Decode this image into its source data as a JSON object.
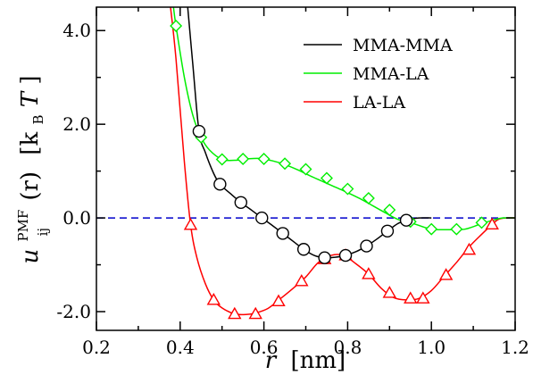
{
  "chart_data": {
    "type": "line",
    "xlabel": {
      "var": "r",
      "unit": "[nm]"
    },
    "ylabel": {
      "base": "u",
      "sup": "PMF",
      "sub": "ij",
      "arg": "(r)",
      "unit_open": "[k",
      "unit_sub": "B",
      "unit_T": "T",
      "unit_close": "]"
    },
    "xlim": [
      0.2,
      1.2
    ],
    "ylim": [
      -2.4,
      4.5
    ],
    "x_ticks": [
      0.2,
      0.4,
      0.6,
      0.8,
      1.0,
      1.2
    ],
    "x_tick_labels": [
      "0.2",
      "0.4",
      "0.6",
      "0.8",
      "1.0",
      "1.2"
    ],
    "y_ticks": [
      -2.0,
      0.0,
      2.0,
      4.0
    ],
    "y_tick_labels": [
      "-2.0",
      "0.0",
      "2.0",
      "4.0"
    ],
    "grid": false,
    "legend_position": "top-right",
    "reference_line": {
      "y": 0.0,
      "style": "dashed",
      "color": "#0000cc"
    },
    "series": [
      {
        "name": "MMA-MMA",
        "color": "#000000",
        "marker": "circle",
        "curve": [
          [
            0.418,
            4.5
          ],
          [
            0.43,
            3.3
          ],
          [
            0.445,
            1.85
          ],
          [
            0.46,
            1.4
          ],
          [
            0.48,
            0.95
          ],
          [
            0.495,
            0.72
          ],
          [
            0.52,
            0.52
          ],
          [
            0.545,
            0.33
          ],
          [
            0.57,
            0.17
          ],
          [
            0.595,
            0.0
          ],
          [
            0.62,
            -0.16
          ],
          [
            0.645,
            -0.33
          ],
          [
            0.67,
            -0.5
          ],
          [
            0.695,
            -0.67
          ],
          [
            0.72,
            -0.8
          ],
          [
            0.745,
            -0.85
          ],
          [
            0.77,
            -0.84
          ],
          [
            0.795,
            -0.8
          ],
          [
            0.82,
            -0.72
          ],
          [
            0.845,
            -0.6
          ],
          [
            0.87,
            -0.45
          ],
          [
            0.895,
            -0.28
          ],
          [
            0.92,
            -0.12
          ],
          [
            0.94,
            -0.05
          ],
          [
            0.955,
            -0.02
          ],
          [
            0.97,
            0.0
          ],
          [
            1.0,
            0.0
          ]
        ],
        "markers": [
          [
            0.445,
            1.85
          ],
          [
            0.495,
            0.72
          ],
          [
            0.545,
            0.33
          ],
          [
            0.595,
            0.0
          ],
          [
            0.645,
            -0.33
          ],
          [
            0.695,
            -0.67
          ],
          [
            0.745,
            -0.85
          ],
          [
            0.795,
            -0.8
          ],
          [
            0.845,
            -0.6
          ],
          [
            0.895,
            -0.28
          ],
          [
            0.94,
            -0.05
          ]
        ]
      },
      {
        "name": "MMA-LA",
        "color": "#00ee00",
        "marker": "diamond",
        "curve": [
          [
            0.384,
            4.5
          ],
          [
            0.39,
            4.1
          ],
          [
            0.41,
            3.0
          ],
          [
            0.43,
            2.2
          ],
          [
            0.45,
            1.72
          ],
          [
            0.47,
            1.45
          ],
          [
            0.5,
            1.25
          ],
          [
            0.53,
            1.23
          ],
          [
            0.56,
            1.26
          ],
          [
            0.59,
            1.27
          ],
          [
            0.62,
            1.22
          ],
          [
            0.65,
            1.14
          ],
          [
            0.68,
            1.03
          ],
          [
            0.71,
            0.9
          ],
          [
            0.74,
            0.78
          ],
          [
            0.77,
            0.66
          ],
          [
            0.8,
            0.54
          ],
          [
            0.83,
            0.41
          ],
          [
            0.86,
            0.26
          ],
          [
            0.89,
            0.11
          ],
          [
            0.92,
            -0.03
          ],
          [
            0.96,
            -0.13
          ],
          [
            1.0,
            -0.24
          ],
          [
            1.04,
            -0.25
          ],
          [
            1.08,
            -0.24
          ],
          [
            1.12,
            -0.12
          ],
          [
            1.15,
            -0.04
          ],
          [
            1.17,
            0.0
          ],
          [
            1.2,
            0.0
          ]
        ],
        "markers": [
          [
            0.39,
            4.1
          ],
          [
            0.45,
            1.72
          ],
          [
            0.5,
            1.25
          ],
          [
            0.55,
            1.26
          ],
          [
            0.6,
            1.26
          ],
          [
            0.65,
            1.16
          ],
          [
            0.7,
            1.04
          ],
          [
            0.75,
            0.85
          ],
          [
            0.8,
            0.62
          ],
          [
            0.85,
            0.42
          ],
          [
            0.9,
            0.17
          ],
          [
            0.95,
            -0.08
          ],
          [
            1.0,
            -0.24
          ],
          [
            1.06,
            -0.24
          ],
          [
            1.12,
            -0.1
          ]
        ]
      },
      {
        "name": "LA-LA",
        "color": "#ff0000",
        "marker": "triangle",
        "curve": [
          [
            0.377,
            4.5
          ],
          [
            0.39,
            3.4
          ],
          [
            0.41,
            1.2
          ],
          [
            0.425,
            -0.15
          ],
          [
            0.44,
            -0.85
          ],
          [
            0.46,
            -1.4
          ],
          [
            0.48,
            -1.75
          ],
          [
            0.5,
            -1.92
          ],
          [
            0.53,
            -2.05
          ],
          [
            0.56,
            -2.06
          ],
          [
            0.58,
            -2.03
          ],
          [
            0.61,
            -1.93
          ],
          [
            0.64,
            -1.72
          ],
          [
            0.67,
            -1.5
          ],
          [
            0.7,
            -1.26
          ],
          [
            0.73,
            -0.95
          ],
          [
            0.76,
            -0.8
          ],
          [
            0.79,
            -0.8
          ],
          [
            0.82,
            -0.98
          ],
          [
            0.85,
            -1.2
          ],
          [
            0.88,
            -1.5
          ],
          [
            0.91,
            -1.7
          ],
          [
            0.94,
            -1.75
          ],
          [
            0.97,
            -1.72
          ],
          [
            1.0,
            -1.55
          ],
          [
            1.03,
            -1.25
          ],
          [
            1.06,
            -0.95
          ],
          [
            1.09,
            -0.62
          ],
          [
            1.12,
            -0.35
          ],
          [
            1.14,
            -0.18
          ],
          [
            1.16,
            -0.03
          ],
          [
            1.18,
            0.0
          ],
          [
            1.2,
            0.0
          ]
        ],
        "markers": [
          [
            0.425,
            -0.15
          ],
          [
            0.48,
            -1.75
          ],
          [
            0.53,
            -2.05
          ],
          [
            0.58,
            -2.05
          ],
          [
            0.635,
            -1.78
          ],
          [
            0.69,
            -1.35
          ],
          [
            0.745,
            -0.88
          ],
          [
            0.795,
            -0.8
          ],
          [
            0.85,
            -1.2
          ],
          [
            0.9,
            -1.6
          ],
          [
            0.95,
            -1.72
          ],
          [
            0.98,
            -1.72
          ],
          [
            1.035,
            -1.22
          ],
          [
            1.09,
            -0.68
          ],
          [
            1.145,
            -0.14
          ]
        ]
      }
    ]
  }
}
